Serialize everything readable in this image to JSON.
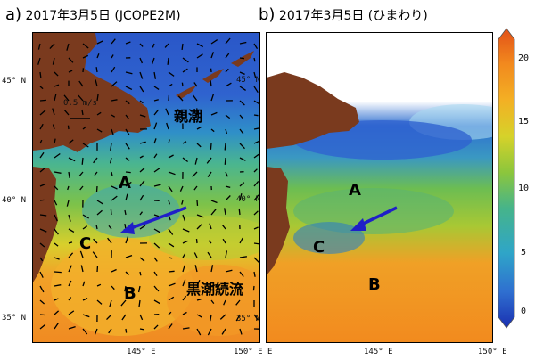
{
  "panel_a": {
    "letter": "a)",
    "title": "2017年3月5日 (JCOPE2M)",
    "scale_label": "0.5 m/s",
    "labels": {
      "oyashio": "親潮",
      "kuroshio": "黒潮続流",
      "A": "A",
      "B": "B",
      "C": "C"
    },
    "lat_ticks_left": [
      "45° N",
      "40° N",
      "35° N"
    ],
    "lat_ticks_inner": [
      "45° N",
      "40° N",
      "35° N"
    ],
    "lon_ticks": [
      "145° E",
      "150° E"
    ]
  },
  "panel_b": {
    "letter": "b)",
    "title": "2017年3月5日 (ひまわり)",
    "labels": {
      "A": "A",
      "B": "B",
      "C": "C"
    },
    "lon_ticks": [
      "E",
      "145° E",
      "150° E"
    ]
  },
  "colorbar": {
    "ticks": [
      "20",
      "15",
      "10",
      "5",
      "0"
    ],
    "range": [
      0,
      20
    ],
    "colors": [
      "#1a2fb0",
      "#2f6fd0",
      "#2fa5c8",
      "#46b48a",
      "#8cc63c",
      "#d6d22a",
      "#f3b024",
      "#f28a1e",
      "#e25118"
    ]
  },
  "colors": {
    "land": "#7a3a1e",
    "arrow": "#1f1fc8"
  }
}
